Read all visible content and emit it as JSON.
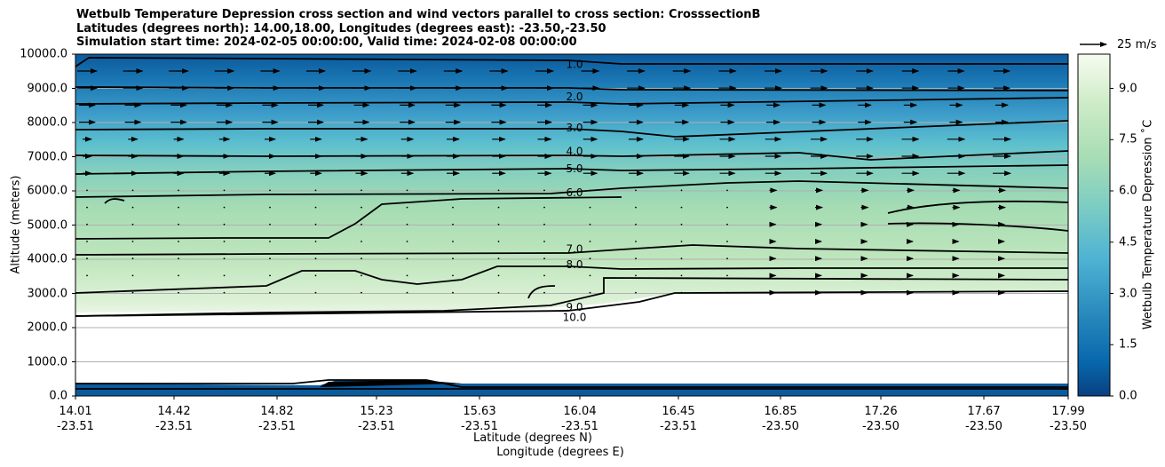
{
  "title": {
    "line1": "Wetbulb Temperature Depression cross section and wind vectors parallel to cross section: CrosssectionB",
    "line2": "Latitudes (degrees north): 14.00,18.00, Longitudes (degrees east): -23.50,-23.50",
    "line3": "Simulation start time: 2024-02-05 00:00:00, Valid time: 2024-02-08 00:00:00"
  },
  "quiver_key": {
    "label": "25 m/s"
  },
  "colors": {
    "dark": "#0a4f8f",
    "mid": "#4fb3d2",
    "light": "#a6dcb3",
    "pale": "#eef8e8"
  },
  "chart_data": {
    "type": "contourf",
    "title": "Wetbulb Temperature Depression cross section and wind vectors parallel to cross section: CrosssectionB",
    "ylabel": "Altitude (meters)",
    "xlabel": "Latitude (degrees N)",
    "xlabel2": "Longitude (degrees E)",
    "ylim": [
      0,
      10000
    ],
    "yticks": [
      "0.0",
      "1000.0",
      "2000.0",
      "3000.0",
      "4000.0",
      "5000.0",
      "6000.0",
      "7000.0",
      "8000.0",
      "9000.0",
      "10000.0"
    ],
    "xticks": [
      {
        "lat": "14.01",
        "lon": "-23.51"
      },
      {
        "lat": "14.42",
        "lon": "-23.51"
      },
      {
        "lat": "14.82",
        "lon": "-23.51"
      },
      {
        "lat": "15.23",
        "lon": "-23.51"
      },
      {
        "lat": "15.63",
        "lon": "-23.51"
      },
      {
        "lat": "16.04",
        "lon": "-23.51"
      },
      {
        "lat": "16.45",
        "lon": "-23.51"
      },
      {
        "lat": "16.85",
        "lon": "-23.50"
      },
      {
        "lat": "17.26",
        "lon": "-23.50"
      },
      {
        "lat": "17.67",
        "lon": "-23.50"
      },
      {
        "lat": "17.99",
        "lon": "-23.50"
      }
    ],
    "colorbar": {
      "label": "Wetbulb Temperature Depression ˚C",
      "range": [
        0,
        10
      ],
      "ticks": [
        "0.0",
        "1.5",
        "3.0",
        "4.5",
        "6.0",
        "7.5",
        "9.0"
      ]
    },
    "contour_labels": [
      {
        "value": "1.0",
        "altitude": 9700
      },
      {
        "value": "2.0",
        "altitude": 8750
      },
      {
        "value": "3.0",
        "altitude": 7850
      },
      {
        "value": "4.0",
        "altitude": 7150
      },
      {
        "value": "5.0",
        "altitude": 6650
      },
      {
        "value": "6.0",
        "altitude": 5950
      },
      {
        "value": "7.0",
        "altitude": 4300
      },
      {
        "value": "8.0",
        "altitude": 3850
      },
      {
        "value": "9.0",
        "altitude": 2600
      },
      {
        "value": "10.0",
        "altitude": 2300
      }
    ],
    "wind": {
      "key_speed": "25 m/s",
      "description": "wind vectors parallel to cross section"
    }
  }
}
